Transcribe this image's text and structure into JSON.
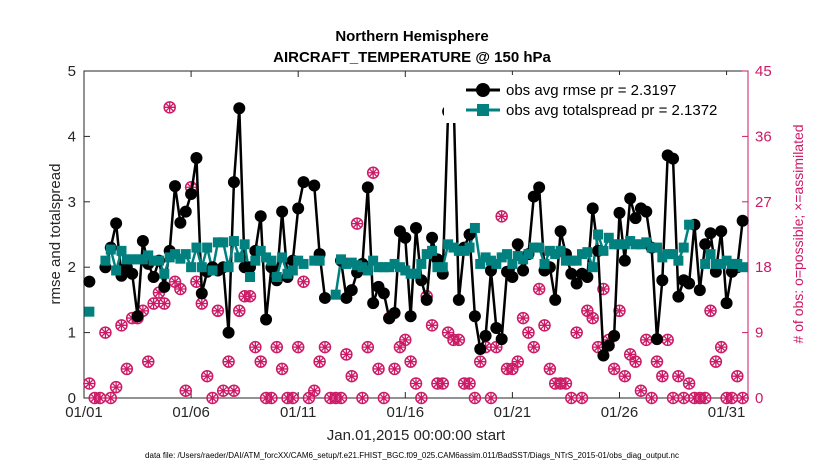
{
  "chart_data": {
    "type": "line",
    "title": "Northern Hemisphere",
    "subtitle": "AIRCRAFT_TEMPERATURE @ 150 hPa",
    "xlabel": "Jan.01,2015 00:00:00 start",
    "ylabel": "rmse and totalspread",
    "ylabel_right": "# of obs: o=possible; ×=assimilated",
    "footer": "data file: /Users/raeder/DAI/ATM_forcXX/CAM6_setup/f.e21.FHIST_BGC.f09_025.CAM6assim.011/BadSST/Diags_NTrS_2015-01/obs_diag_output.nc",
    "xlim": [
      1,
      32
    ],
    "ylim": [
      0,
      5
    ],
    "ylim_right": [
      0,
      45
    ],
    "grid": false,
    "legend_position": "top-right",
    "x_ticks": [
      1,
      6,
      11,
      16,
      21,
      26,
      31
    ],
    "x_tick_labels": [
      "01/01",
      "01/06",
      "01/11",
      "01/16",
      "01/21",
      "01/26",
      "01/31"
    ],
    "y_ticks": [
      0,
      1,
      2,
      3,
      4,
      5
    ],
    "y_ticks_right": [
      0,
      9,
      18,
      27,
      36,
      45
    ],
    "x": [
      1.25,
      1.5,
      1.75,
      2.0,
      2.25,
      2.5,
      2.75,
      3.0,
      3.25,
      3.5,
      3.75,
      4.0,
      4.25,
      4.5,
      4.75,
      5.0,
      5.25,
      5.5,
      5.75,
      6.0,
      6.25,
      6.5,
      6.75,
      7.0,
      7.25,
      7.5,
      7.75,
      8.0,
      8.25,
      8.5,
      8.75,
      9.0,
      9.25,
      9.5,
      9.75,
      10.0,
      10.25,
      10.5,
      10.75,
      11.0,
      11.25,
      11.5,
      11.75,
      12.0,
      12.25,
      12.5,
      12.75,
      13.0,
      13.25,
      13.5,
      13.75,
      14.0,
      14.25,
      14.5,
      14.75,
      15.0,
      15.25,
      15.5,
      15.75,
      16.0,
      16.25,
      16.5,
      16.75,
      17.0,
      17.25,
      17.5,
      17.75,
      18.0,
      18.25,
      18.5,
      18.75,
      19.0,
      19.25,
      19.5,
      19.75,
      20.0,
      20.25,
      20.5,
      20.75,
      21.0,
      21.25,
      21.5,
      21.75,
      22.0,
      22.25,
      22.5,
      22.75,
      23.0,
      23.25,
      23.5,
      23.75,
      24.0,
      24.25,
      24.5,
      24.75,
      25.0,
      25.25,
      25.5,
      25.75,
      26.0,
      26.25,
      26.5,
      26.75,
      27.0,
      27.25,
      27.5,
      27.75,
      28.0,
      28.25,
      28.5,
      28.75,
      29.0,
      29.25,
      29.5,
      29.75,
      30.0,
      30.25,
      30.5,
      30.75,
      31.0,
      31.25,
      31.5,
      31.75
    ],
    "series": [
      {
        "name": "obs avg rmse pr = 2.3197",
        "color": "#000000",
        "marker": "circle",
        "axis": "left",
        "values": [
          1.78,
          null,
          null,
          2.0,
          2.3,
          2.67,
          1.87,
          2.0,
          1.9,
          1.25,
          2.4,
          2.05,
          1.85,
          2.1,
          1.7,
          2.25,
          3.24,
          2.68,
          2.85,
          3.12,
          3.67,
          1.6,
          1.93,
          2.0,
          1.95,
          2.0,
          1.0,
          3.3,
          4.43,
          2.0,
          2.0,
          2.25,
          2.78,
          1.2,
          2.0,
          1.8,
          2.85,
          1.85,
          2.1,
          2.9,
          3.3,
          null,
          3.25,
          2.2,
          1.53,
          null,
          null,
          2.1,
          1.53,
          1.65,
          1.92,
          2.05,
          3.22,
          1.45,
          1.7,
          1.6,
          1.22,
          1.3,
          2.55,
          2.45,
          1.25,
          2.6,
          1.8,
          1.5,
          2.45,
          2.12,
          1.9,
          4.38,
          4.64,
          1.5,
          2.3,
          2.5,
          1.25,
          0.75,
          0.95,
          1.95,
          1.07,
          0.9,
          1.93,
          1.85,
          2.35,
          1.95,
          2.2,
          3.08,
          3.22,
          1.95,
          2.0,
          1.5,
          2.55,
          2.2,
          1.9,
          1.75,
          1.9,
          1.85,
          2.9,
          2.25,
          0.65,
          0.8,
          0.95,
          2.83,
          2.1,
          3.05,
          2.75,
          2.9,
          2.85,
          2.3,
          0.9,
          1.8,
          3.71,
          3.66,
          1.55,
          1.8,
          1.75,
          2.65,
          1.65,
          2.35,
          2.52,
          1.93,
          2.55,
          1.45,
          1.93,
          2.0,
          2.71
        ]
      },
      {
        "name": "obs avg totalspread pr = 2.1372",
        "color": "#00807f",
        "marker": "square",
        "axis": "left",
        "values": [
          1.32,
          null,
          null,
          2.1,
          2.27,
          1.95,
          2.25,
          2.12,
          2.12,
          2.12,
          2.12,
          2.18,
          2.1,
          2.1,
          1.9,
          2.15,
          2.2,
          2.13,
          2.2,
          2.0,
          2.3,
          2.0,
          2.3,
          1.95,
          2.38,
          2.38,
          2.0,
          2.4,
          2.15,
          2.35,
          1.85,
          2.1,
          2.25,
          2.15,
          2.1,
          1.85,
          2.15,
          1.9,
          1.95,
          2.1,
          2.05,
          null,
          2.1,
          2.1,
          null,
          null,
          1.58,
          2.12,
          2.05,
          2.07,
          2.03,
          2.0,
          1.95,
          2.1,
          2.0,
          2.0,
          2.0,
          2.05,
          2.0,
          1.95,
          1.9,
          1.9,
          2.05,
          2.2,
          2.25,
          2.0,
          2.0,
          2.35,
          2.3,
          2.25,
          2.25,
          2.3,
          2.6,
          2.05,
          2.15,
          2.1,
          2.05,
          2.15,
          2.2,
          2.05,
          2.17,
          2.12,
          2.2,
          2.3,
          2.3,
          2.05,
          2.25,
          2.2,
          2.25,
          2.1,
          2.1,
          2.1,
          2.2,
          2.23,
          2.0,
          2.5,
          2.25,
          2.45,
          2.35,
          2.35,
          2.35,
          2.4,
          2.35,
          2.35,
          2.38,
          2.3,
          2.3,
          2.15,
          2.2,
          2.2,
          2.1,
          2.3,
          2.65,
          null,
          null,
          2.05,
          2.2,
          2.05,
          2.05,
          2.1,
          2.05,
          2.05,
          2.0
        ]
      },
      {
        "name": "possible",
        "color": "#cc1a66",
        "marker": "open-circle",
        "axis": "right",
        "values": [
          2.0,
          0.0,
          0.0,
          9.0,
          0.0,
          1.5,
          10.0,
          4.0,
          11.0,
          11.0,
          12.0,
          5.0,
          13.0,
          14.5,
          13.0,
          40.0,
          16.0,
          15.0,
          1.0,
          29.0,
          16.0,
          13.0,
          3.0,
          0.0,
          12.0,
          1.0,
          5.0,
          1.0,
          12.0,
          14.0,
          14.0,
          7.0,
          5.0,
          0.0,
          0.0,
          7.0,
          4.0,
          0.0,
          0.0,
          7.0,
          16.0,
          0.0,
          1.0,
          5.0,
          7.0,
          0.0,
          0.0,
          0.0,
          6.0,
          3.0,
          24.0,
          0.0,
          7.0,
          31.0,
          4.0,
          0.0,
          11.0,
          4.0,
          7.0,
          8.0,
          5.0,
          2.0,
          0.0,
          14.0,
          10.0,
          2.0,
          2.0,
          9.0,
          8.0,
          8.0,
          2.0,
          2.0,
          0.0,
          5.0,
          7.0,
          0.0,
          7.0,
          25.0,
          4.0,
          4.0,
          5.0,
          11.0,
          9.0,
          7.0,
          15.0,
          10.0,
          4.0,
          2.0,
          2.0,
          2.0,
          0.0,
          9.0,
          0.0,
          12.0,
          11.0,
          7.0,
          15.0,
          8.0,
          4.0,
          12.0,
          3.0,
          6.0,
          5.0,
          1.0,
          8.0,
          0.0,
          5.0,
          3.0,
          8.0,
          0.0,
          3.0,
          0.0,
          2.0,
          0.0,
          0.0,
          0.0,
          12.0,
          5.0,
          7.0,
          0.0,
          0.0,
          3.0,
          0.0
        ]
      },
      {
        "name": "assimilated",
        "color": "#cc1a66",
        "marker": "asterisk",
        "axis": "right",
        "values": [
          2.0,
          0.0,
          0.0,
          9.0,
          0.0,
          1.5,
          10.0,
          4.0,
          11.0,
          11.0,
          12.0,
          5.0,
          13.0,
          14.5,
          13.0,
          40.0,
          16.0,
          15.0,
          1.0,
          29.0,
          16.0,
          13.0,
          3.0,
          0.0,
          12.0,
          1.0,
          5.0,
          1.0,
          12.0,
          14.0,
          14.0,
          7.0,
          5.0,
          0.0,
          0.0,
          7.0,
          4.0,
          0.0,
          0.0,
          7.0,
          16.0,
          0.0,
          1.0,
          5.0,
          7.0,
          0.0,
          0.0,
          0.0,
          6.0,
          3.0,
          24.0,
          0.0,
          7.0,
          31.0,
          4.0,
          0.0,
          11.0,
          4.0,
          7.0,
          8.0,
          5.0,
          2.0,
          0.0,
          14.0,
          10.0,
          2.0,
          2.0,
          9.0,
          8.0,
          8.0,
          2.0,
          2.0,
          0.0,
          5.0,
          7.0,
          0.0,
          7.0,
          25.0,
          4.0,
          4.0,
          5.0,
          11.0,
          9.0,
          7.0,
          15.0,
          10.0,
          4.0,
          2.0,
          2.0,
          2.0,
          0.0,
          9.0,
          0.0,
          12.0,
          11.0,
          7.0,
          15.0,
          8.0,
          4.0,
          12.0,
          3.0,
          6.0,
          5.0,
          1.0,
          8.0,
          0.0,
          5.0,
          3.0,
          8.0,
          0.0,
          3.0,
          0.0,
          2.0,
          0.0,
          0.0,
          0.0,
          12.0,
          5.0,
          7.0,
          0.0,
          0.0,
          3.0,
          0.0
        ]
      }
    ]
  }
}
